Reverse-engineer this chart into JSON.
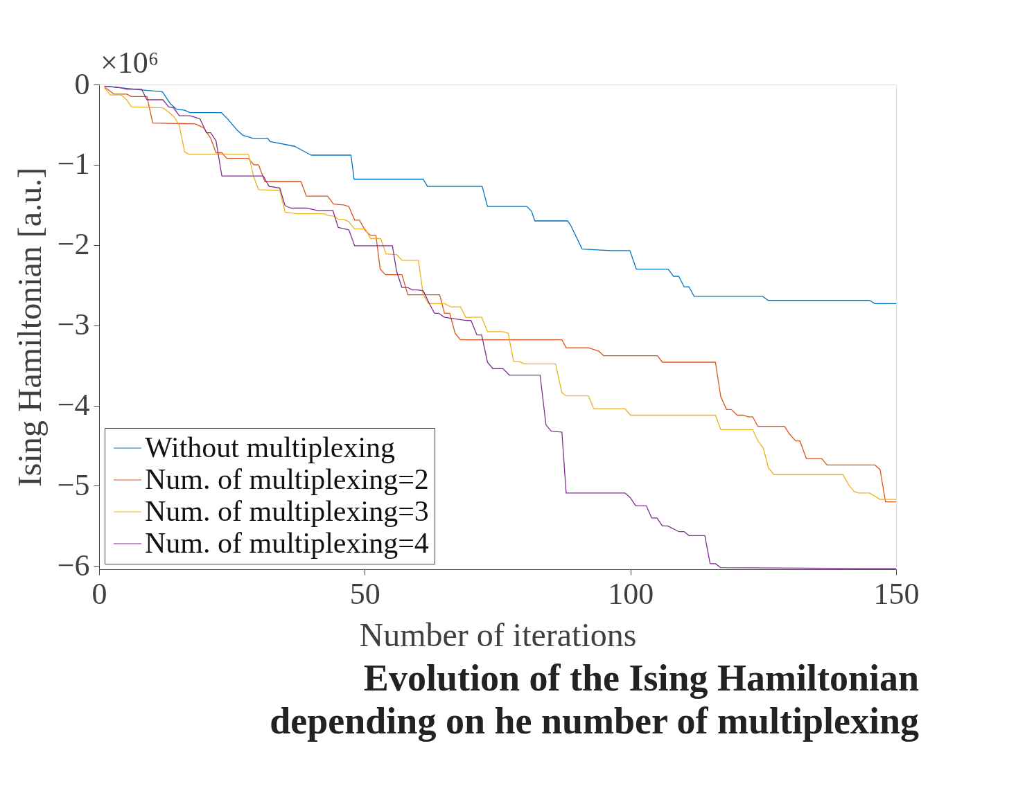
{
  "chart_data": {
    "type": "line",
    "title": "Evolution of the Ising Hamiltonian\ndepending on he number of multiplexing",
    "xlabel": "Number of iterations",
    "ylabel": "Ising Hamiltonian [a.u.]",
    "annotations": [
      "×10⁶"
    ],
    "xlim": [
      0,
      150
    ],
    "xticks": [
      0,
      50,
      100,
      150
    ],
    "ylim": [
      -6.04,
      0
    ],
    "yticks": [
      0,
      -1,
      -2,
      -3,
      -4,
      -5,
      -6
    ],
    "grid": false,
    "legend": "bottom left",
    "marker": "none",
    "line_style": "solid",
    "series": [
      {
        "name": "Without multiplexing",
        "color": "#0072bd",
        "x": [
          1.2,
          8.4,
          11.9,
          13.4,
          14.6,
          16.1,
          17.1,
          23.0,
          24.2,
          26.0,
          27.0,
          28.9,
          31.7,
          32.2,
          36.8,
          39.9,
          47.4,
          48.0,
          61.0,
          61.8,
          72.1,
          73.1,
          80.5,
          81.4,
          82.0,
          88.2,
          88.8,
          90.9,
          96.2,
          99.9,
          101.1,
          107.1,
          108.1,
          109.1,
          110.1,
          111.0,
          112.0,
          124.9,
          125.9,
          145.0,
          146.0,
          150
        ],
        "values": [
          -0.02,
          -0.07,
          -0.09,
          -0.24,
          -0.31,
          -0.32,
          -0.35,
          -0.35,
          -0.43,
          -0.57,
          -0.63,
          -0.67,
          -0.67,
          -0.71,
          -0.77,
          -0.88,
          -0.88,
          -1.18,
          -1.18,
          -1.27,
          -1.27,
          -1.52,
          -1.52,
          -1.58,
          -1.7,
          -1.7,
          -1.76,
          -2.05,
          -2.07,
          -2.07,
          -2.3,
          -2.3,
          -2.39,
          -2.39,
          -2.52,
          -2.52,
          -2.64,
          -2.64,
          -2.69,
          -2.69,
          -2.73,
          -2.73
        ]
      },
      {
        "name": "Num. of multiplexing=2",
        "color": "#d95319",
        "x": [
          1.0,
          2.8,
          5.2,
          6.1,
          9.0,
          10.1,
          18.1,
          19.7,
          21.0,
          22.0,
          23.1,
          24.0,
          28.1,
          29.1,
          30.0,
          31.2,
          38.0,
          39.0,
          43.0,
          44.1,
          46.0,
          47.0,
          48.1,
          49.0,
          50.1,
          51.1,
          52.1,
          52.9,
          53.9,
          57.0,
          58.1,
          64.1,
          65.0,
          66.0,
          67.0,
          68.0,
          87.1,
          87.9,
          92.1,
          94.0,
          95.0,
          105.1,
          106.0,
          116.0,
          117.0,
          118.1,
          119.0,
          120.1,
          121.2,
          122.2,
          123.0,
          124.0,
          129.0,
          130.0,
          131.1,
          131.9,
          133.1,
          136.0,
          137.0,
          146.0,
          147.0,
          148.0,
          150
        ],
        "values": [
          -0.03,
          -0.12,
          -0.12,
          -0.15,
          -0.15,
          -0.48,
          -0.49,
          -0.54,
          -0.67,
          -0.85,
          -0.85,
          -0.92,
          -0.92,
          -1.0,
          -1.0,
          -1.21,
          -1.21,
          -1.39,
          -1.39,
          -1.49,
          -1.5,
          -1.52,
          -1.69,
          -1.69,
          -1.82,
          -1.88,
          -1.88,
          -2.3,
          -2.37,
          -2.37,
          -2.62,
          -2.62,
          -2.85,
          -2.85,
          -3.1,
          -3.18,
          -3.18,
          -3.28,
          -3.28,
          -3.32,
          -3.38,
          -3.38,
          -3.46,
          -3.46,
          -3.89,
          -4.05,
          -4.05,
          -4.12,
          -4.12,
          -4.14,
          -4.14,
          -4.26,
          -4.26,
          -4.36,
          -4.44,
          -4.44,
          -4.66,
          -4.66,
          -4.74,
          -4.74,
          -4.8,
          -5.2,
          -5.2
        ]
      },
      {
        "name": "Num. of multiplexing=3",
        "color": "#edb120",
        "x": [
          1.0,
          2.1,
          4.1,
          5.2,
          6.1,
          12.0,
          13.2,
          14.2,
          15.1,
          16.1,
          16.9,
          28.1,
          29.1,
          30.0,
          34.0,
          35.0,
          36.1,
          37.1,
          42.3,
          43.0,
          44.1,
          45.1,
          46.0,
          47.0,
          48.1,
          50.1,
          51.1,
          53.0,
          54.0,
          56.0,
          57.0,
          60.1,
          61.0,
          62.0,
          65.0,
          66.2,
          68.0,
          69.0,
          72.0,
          73.1,
          76.0,
          77.0,
          78.0,
          79.1,
          80.0,
          85.9,
          87.1,
          87.9,
          92.1,
          93.1,
          99.0,
          100.0,
          116.0,
          117.0,
          123.0,
          124.0,
          125.0,
          126.0,
          127.0,
          140.0,
          141.1,
          142.1,
          142.9,
          145.0,
          147.0,
          150
        ],
        "values": [
          -0.04,
          -0.13,
          -0.13,
          -0.19,
          -0.28,
          -0.29,
          -0.35,
          -0.41,
          -0.51,
          -0.84,
          -0.87,
          -0.87,
          -1.15,
          -1.31,
          -1.32,
          -1.59,
          -1.6,
          -1.61,
          -1.61,
          -1.63,
          -1.64,
          -1.68,
          -1.68,
          -1.71,
          -1.8,
          -1.8,
          -1.92,
          -1.92,
          -2.11,
          -2.12,
          -2.19,
          -2.19,
          -2.62,
          -2.73,
          -2.73,
          -2.77,
          -2.77,
          -2.9,
          -2.9,
          -3.08,
          -3.08,
          -3.1,
          -3.45,
          -3.45,
          -3.48,
          -3.48,
          -3.84,
          -3.88,
          -3.88,
          -4.04,
          -4.04,
          -4.12,
          -4.12,
          -4.3,
          -4.3,
          -4.44,
          -4.53,
          -4.78,
          -4.86,
          -4.86,
          -4.99,
          -5.07,
          -5.09,
          -5.09,
          -5.17,
          -5.17
        ]
      },
      {
        "name": "Num. of multiplexing=4",
        "color": "#7e2f8e",
        "x": [
          1.0,
          4.0,
          5.2,
          8.0,
          9.0,
          12.0,
          13.1,
          14.0,
          15.1,
          17.1,
          18.2,
          19.0,
          20.2,
          21.0,
          22.0,
          23.1,
          30.9,
          32.0,
          34.0,
          35.0,
          36.1,
          39.0,
          41.1,
          44.0,
          45.0,
          47.0,
          48.1,
          55.2,
          56.0,
          57.0,
          58.1,
          59.0,
          60.0,
          61.0,
          62.0,
          63.1,
          63.9,
          65.0,
          68.1,
          69.1,
          70.0,
          71.1,
          72.0,
          73.1,
          74.1,
          76.0,
          77.2,
          83.0,
          84.1,
          85.1,
          87.1,
          87.9,
          99.0,
          100.0,
          101.0,
          103.0,
          104.0,
          105.0,
          106.0,
          107.0,
          109.1,
          110.1,
          111.0,
          114.0,
          115.0,
          116.0,
          117.0,
          144.1,
          145.7,
          150
        ],
        "values": [
          -0.02,
          -0.04,
          -0.06,
          -0.06,
          -0.19,
          -0.19,
          -0.28,
          -0.29,
          -0.39,
          -0.39,
          -0.41,
          -0.43,
          -0.6,
          -0.6,
          -0.7,
          -1.14,
          -1.14,
          -1.27,
          -1.29,
          -1.51,
          -1.54,
          -1.54,
          -1.57,
          -1.57,
          -1.78,
          -1.81,
          -2.01,
          -2.01,
          -2.33,
          -2.53,
          -2.53,
          -2.56,
          -2.56,
          -2.57,
          -2.71,
          -2.85,
          -2.85,
          -2.9,
          -2.93,
          -2.94,
          -2.94,
          -3.12,
          -3.12,
          -3.46,
          -3.54,
          -3.54,
          -3.62,
          -3.62,
          -4.24,
          -4.32,
          -4.33,
          -5.09,
          -5.09,
          -5.15,
          -5.25,
          -5.25,
          -5.4,
          -5.4,
          -5.5,
          -5.5,
          -5.57,
          -5.57,
          -5.62,
          -5.62,
          -5.97,
          -5.97,
          -6.02,
          -6.03,
          -6.03,
          -6.03
        ]
      }
    ]
  }
}
